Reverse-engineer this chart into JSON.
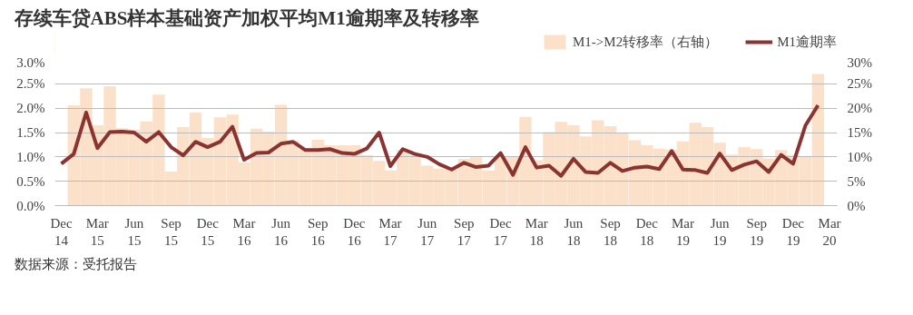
{
  "chart_data": {
    "type": "line",
    "title": "存续车贷ABS样本基础资产加权平均M1逾期率及转移率",
    "annotations": [
      "数据来源：受托报告"
    ],
    "x": [
      "2014-12",
      "2015-01",
      "2015-02",
      "2015-03",
      "2015-04",
      "2015-05",
      "2015-06",
      "2015-07",
      "2015-08",
      "2015-09",
      "2015-10",
      "2015-11",
      "2015-12",
      "2016-01",
      "2016-02",
      "2016-03",
      "2016-04",
      "2016-05",
      "2016-06",
      "2016-07",
      "2016-08",
      "2016-09",
      "2016-10",
      "2016-11",
      "2016-12",
      "2017-01",
      "2017-02",
      "2017-03",
      "2017-04",
      "2017-05",
      "2017-06",
      "2017-07",
      "2017-08",
      "2017-09",
      "2017-10",
      "2017-11",
      "2017-12",
      "2018-01",
      "2018-02",
      "2018-03",
      "2018-04",
      "2018-05",
      "2018-06",
      "2018-07",
      "2018-08",
      "2018-09",
      "2018-10",
      "2018-11",
      "2018-12",
      "2019-01",
      "2019-02",
      "2019-03",
      "2019-04",
      "2019-05",
      "2019-06",
      "2019-07",
      "2019-08",
      "2019-09",
      "2019-10",
      "2019-11",
      "2019-12",
      "2020-01",
      "2020-02"
    ],
    "series": [
      {
        "name": "M1->M2转移率（右轴）",
        "type": "bar",
        "axis": "y2",
        "color": "#fbe1c9",
        "values": [
          null,
          20.6,
          24.1,
          16.5,
          24.5,
          15.9,
          15.6,
          17.3,
          22.8,
          7.0,
          16.1,
          19.1,
          13.9,
          18.1,
          18.7,
          8.9,
          15.8,
          15.2,
          20.7,
          13.3,
          11.6,
          13.5,
          12.4,
          12.4,
          12.4,
          10.4,
          9.2,
          7.2,
          11.4,
          10.3,
          8.2,
          7.6,
          7.5,
          9.6,
          9.9,
          7.2,
          10.1,
          10.1,
          18.2,
          9.3,
          15.1,
          17.2,
          16.5,
          14.2,
          17.5,
          16.3,
          14.8,
          13.4,
          12.4,
          11.7,
          11.5,
          13.2,
          17.0,
          16.1,
          12.9,
          10.5,
          12.0,
          11.6,
          9.7,
          11.4,
          10.4,
          10.1,
          27.0
        ]
      },
      {
        "name": "M1逾期率",
        "color": "#8b3330",
        "values": [
          0.86,
          1.06,
          1.91,
          1.18,
          1.51,
          1.52,
          1.5,
          1.31,
          1.51,
          1.2,
          1.03,
          1.31,
          1.2,
          1.31,
          1.62,
          0.94,
          1.08,
          1.09,
          1.27,
          1.31,
          1.14,
          1.14,
          1.16,
          1.08,
          1.06,
          1.17,
          1.5,
          0.81,
          1.16,
          1.06,
          1.0,
          0.85,
          0.74,
          0.88,
          0.79,
          0.82,
          1.08,
          0.63,
          1.2,
          0.78,
          0.82,
          0.61,
          0.96,
          0.69,
          0.67,
          0.88,
          0.71,
          0.78,
          0.8,
          0.75,
          1.12,
          0.74,
          0.73,
          0.67,
          1.07,
          0.73,
          0.84,
          0.91,
          0.69,
          1.04,
          0.86,
          1.65,
          2.06
        ]
      }
    ],
    "xlim": [
      "2014-11-15",
      "2020-03-20"
    ],
    "xticks": [
      {
        "value": "2014-12",
        "label": "Dec\n14"
      },
      {
        "value": "2015-03",
        "label": "Mar\n15"
      },
      {
        "value": "2015-06",
        "label": "Jun\n15"
      },
      {
        "value": "2015-09",
        "label": "Sep\n15"
      },
      {
        "value": "2015-12",
        "label": "Dec\n15"
      },
      {
        "value": "2016-03",
        "label": "Mar\n16"
      },
      {
        "value": "2016-06",
        "label": "Jun\n16"
      },
      {
        "value": "2016-09",
        "label": "Sep\n16"
      },
      {
        "value": "2016-12",
        "label": "Dec\n16"
      },
      {
        "value": "2017-03",
        "label": "Mar\n17"
      },
      {
        "value": "2017-06",
        "label": "Jun\n17"
      },
      {
        "value": "2017-09",
        "label": "Sep\n17"
      },
      {
        "value": "2017-12",
        "label": "Dec\n17"
      },
      {
        "value": "2018-03",
        "label": "Mar\n18"
      },
      {
        "value": "2018-06",
        "label": "Jun\n18"
      },
      {
        "value": "2018-09",
        "label": "Sep\n18"
      },
      {
        "value": "2018-12",
        "label": "Dec\n18"
      },
      {
        "value": "2019-03",
        "label": "Mar\n19"
      },
      {
        "value": "2019-06",
        "label": "Jun\n19"
      },
      {
        "value": "2019-09",
        "label": "Sep\n19"
      },
      {
        "value": "2019-12",
        "label": "Dec\n19"
      },
      {
        "value": "2020-03",
        "label": "Mar\n20"
      }
    ],
    "ylim": [
      0,
      3.0
    ],
    "yticks": [
      {
        "value": 0,
        "label": "0.0%"
      },
      {
        "value": 0.5,
        "label": "0.5%"
      },
      {
        "value": 1.0,
        "label": "1.0%"
      },
      {
        "value": 1.5,
        "label": "1.5%"
      },
      {
        "value": 2.0,
        "label": "2.0%"
      },
      {
        "value": 2.5,
        "label": "2.5%"
      },
      {
        "value": 3.0,
        "label": "3.0%"
      }
    ],
    "y2lim": [
      0,
      30
    ],
    "y2ticks": [
      {
        "value": 0,
        "label": "0%"
      },
      {
        "value": 5,
        "label": "5%"
      },
      {
        "value": 10,
        "label": "10%"
      },
      {
        "value": 15,
        "label": "15%"
      },
      {
        "value": 20,
        "label": "20%"
      },
      {
        "value": 25,
        "label": "25%"
      },
      {
        "value": 30,
        "label": "30%"
      }
    ],
    "grid": "y",
    "legend": "top right",
    "line_style": "solid",
    "marker": "none"
  }
}
